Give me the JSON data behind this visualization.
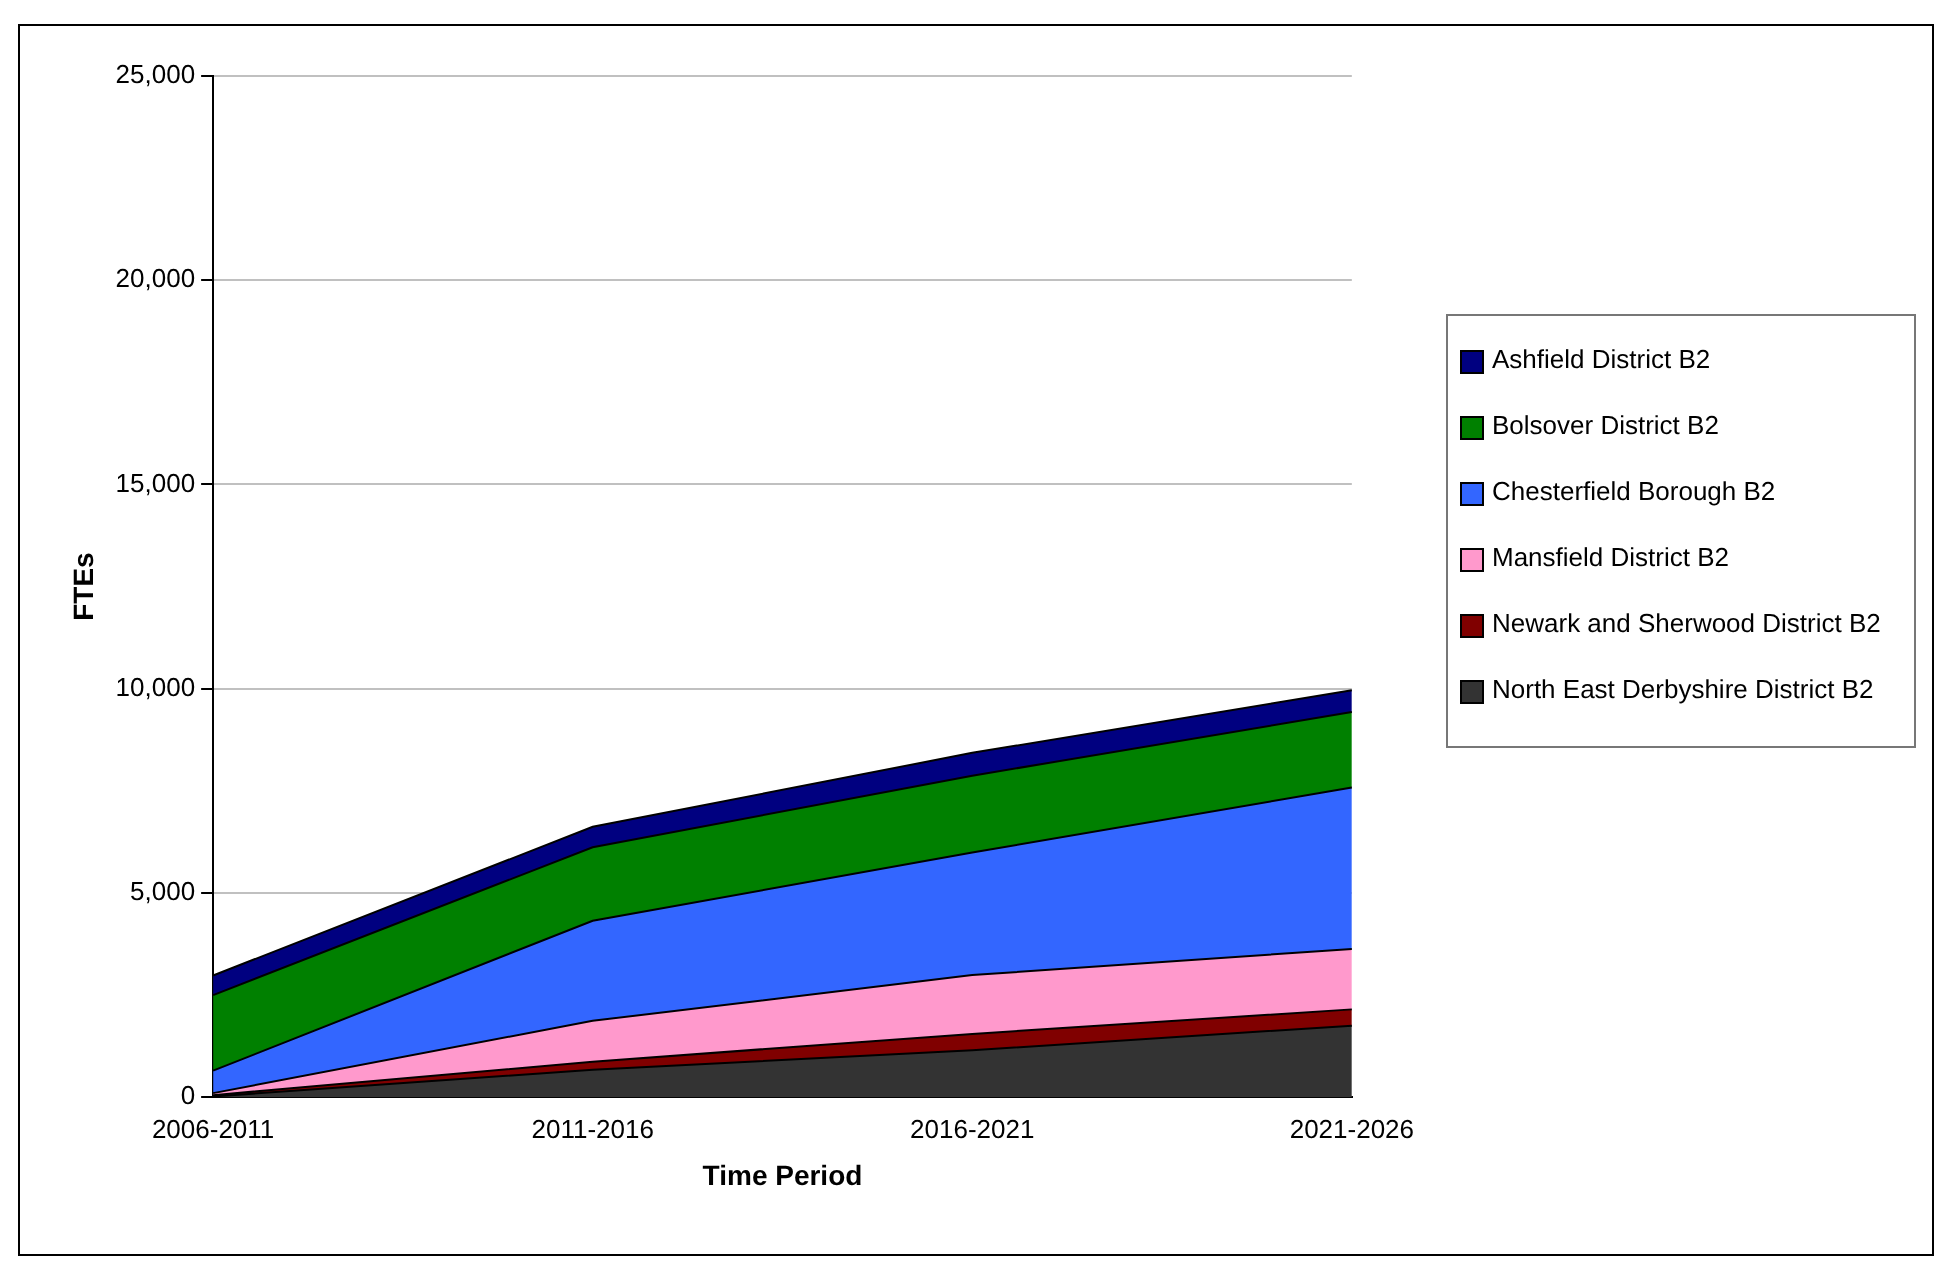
{
  "chart_data": {
    "type": "area",
    "stacked": true,
    "xlabel": "Time Period",
    "ylabel": "FTEs",
    "categories": [
      "2006-2011",
      "2011-2016",
      "2016-2021",
      "2021-2026"
    ],
    "series": [
      {
        "name": "North East Derbyshire District B2",
        "color": "#333333",
        "values": [
          20,
          670,
          1150,
          1750
        ]
      },
      {
        "name": "Newark and Sherwood District B2",
        "color": "#800000",
        "values": [
          30,
          200,
          400,
          400
        ]
      },
      {
        "name": "Mansfield District B2",
        "color": "#ff99cc",
        "values": [
          50,
          1000,
          1440,
          1480
        ]
      },
      {
        "name": "Chesterfield Borough B2",
        "color": "#3366ff",
        "values": [
          550,
          2450,
          3000,
          3950
        ]
      },
      {
        "name": "Bolsover District B2",
        "color": "#008000",
        "values": [
          1850,
          1800,
          1880,
          1850
        ]
      },
      {
        "name": "Ashfield District B2",
        "color": "#000080",
        "values": [
          480,
          500,
          560,
          530
        ]
      }
    ],
    "ylim": [
      0,
      25000
    ],
    "yticks": [
      0,
      {
        "value": 5000,
        "label": "5,000"
      },
      {
        "value": 10000,
        "label": "10,000"
      },
      {
        "value": 15000,
        "label": "15,000"
      },
      {
        "value": 20000,
        "label": "20,000"
      },
      {
        "value": 25000,
        "label": "25,000"
      }
    ],
    "grid": "y",
    "legend": "right"
  }
}
